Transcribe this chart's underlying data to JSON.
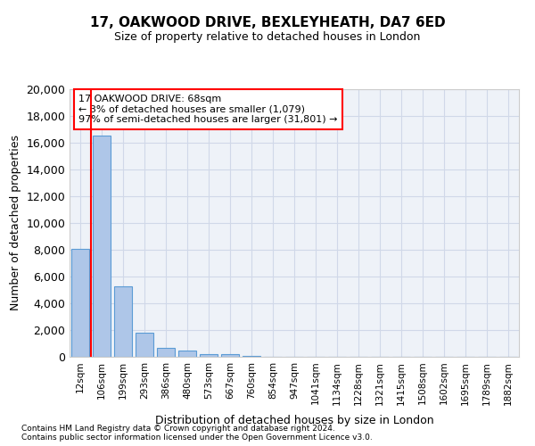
{
  "title": "17, OAKWOOD DRIVE, BEXLEYHEATH, DA7 6ED",
  "subtitle": "Size of property relative to detached houses in London",
  "xlabel": "Distribution of detached houses by size in London",
  "ylabel": "Number of detached properties",
  "categories": [
    "12sqm",
    "106sqm",
    "199sqm",
    "293sqm",
    "386sqm",
    "480sqm",
    "573sqm",
    "667sqm",
    "760sqm",
    "854sqm",
    "947sqm",
    "1041sqm",
    "1134sqm",
    "1228sqm",
    "1321sqm",
    "1415sqm",
    "1508sqm",
    "1602sqm",
    "1695sqm",
    "1789sqm",
    "1882sqm"
  ],
  "values": [
    8100,
    16500,
    5300,
    1800,
    700,
    450,
    230,
    170,
    100,
    0,
    0,
    0,
    0,
    0,
    0,
    0,
    0,
    0,
    0,
    0,
    0
  ],
  "bar_color": "#aec6e8",
  "bar_edge_color": "#5b9bd5",
  "annotation_text": "17 OAKWOOD DRIVE: 68sqm\n← 3% of detached houses are smaller (1,079)\n97% of semi-detached houses are larger (31,801) →",
  "ylim": [
    0,
    20000
  ],
  "yticks": [
    0,
    2000,
    4000,
    6000,
    8000,
    10000,
    12000,
    14000,
    16000,
    18000,
    20000
  ],
  "grid_color": "#d0d8e8",
  "bg_color": "#eef2f8",
  "footer_line1": "Contains HM Land Registry data © Crown copyright and database right 2024.",
  "footer_line2": "Contains public sector information licensed under the Open Government Licence v3.0."
}
